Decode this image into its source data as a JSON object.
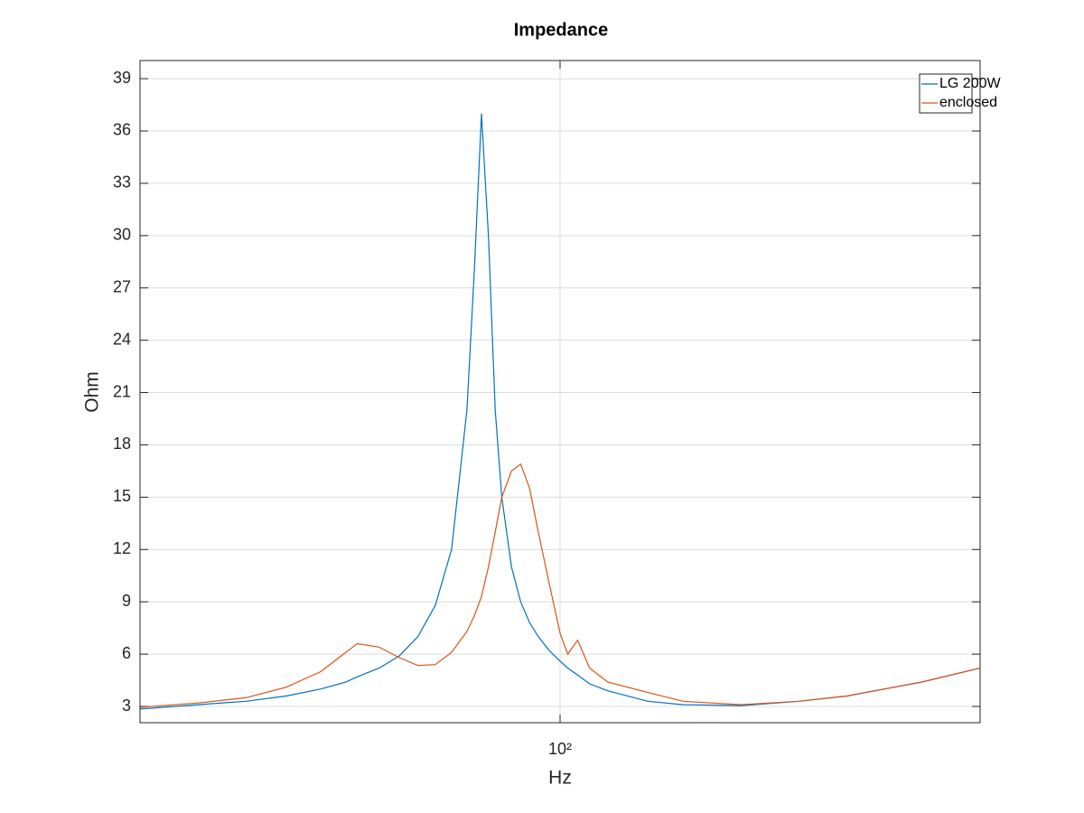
{
  "chart_data": {
    "type": "line",
    "title": "Impedance",
    "x_label": "Hz",
    "y_label": "Ohm",
    "x": [
      20,
      25,
      30,
      35,
      40,
      44,
      46,
      50,
      54,
      58,
      62,
      66,
      70,
      72,
      74,
      76,
      78,
      80,
      83,
      86,
      89,
      92,
      96,
      100,
      103,
      107,
      112,
      120,
      140,
      160,
      200,
      250,
      300,
      400,
      500
    ],
    "series": [
      {
        "name": "LG 200W",
        "color": "#0072bd",
        "values": [
          2.85,
          3.1,
          3.3,
          3.6,
          4.0,
          4.4,
          4.7,
          5.2,
          5.9,
          7.0,
          8.8,
          12,
          20,
          28,
          37,
          30,
          20,
          15,
          11,
          9.0,
          7.8,
          7.0,
          6.2,
          5.6,
          5.2,
          4.8,
          4.3,
          3.9,
          3.3,
          3.1,
          3.05,
          3.3,
          3.6,
          4.4,
          5.2
        ]
      },
      {
        "name": "enclosed",
        "color": "#d95319",
        "values": [
          2.95,
          3.2,
          3.5,
          4.1,
          5.0,
          6.1,
          6.6,
          6.4,
          5.8,
          5.35,
          5.4,
          6.1,
          7.3,
          8.2,
          9.3,
          11,
          13,
          15,
          16.5,
          16.9,
          15.5,
          13,
          10,
          7.2,
          6.0,
          6.8,
          5.2,
          4.4,
          3.8,
          3.3,
          3.1,
          3.3,
          3.6,
          4.4,
          5.2
        ]
      }
    ],
    "xlim": [
      20,
      500
    ],
    "x_log": true,
    "xticks": [
      {
        "value": 100,
        "label": "10²"
      }
    ],
    "ylim": [
      2.07,
      40.04
    ],
    "yticks": [
      3,
      6,
      9,
      12,
      15,
      18,
      21,
      24,
      27,
      30,
      33,
      36,
      39
    ],
    "grid": true,
    "legend": "northeast"
  }
}
